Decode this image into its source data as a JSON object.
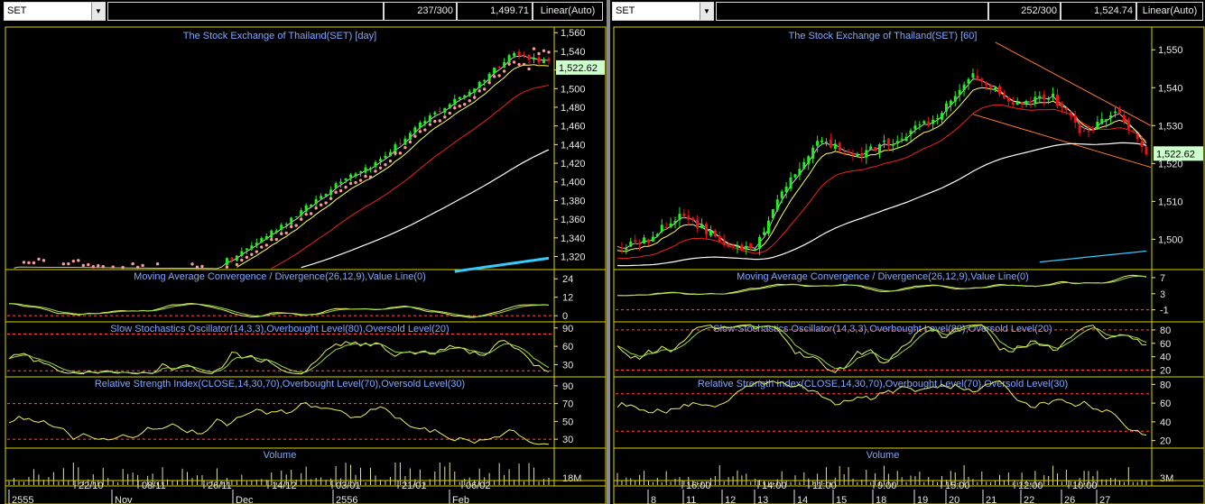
{
  "left": {
    "symbol": "SET",
    "count": "237/300",
    "last": "1,499.71",
    "scale": "Linear(Auto)",
    "price_title": "The Stock Exchange of Thailand(SET) [day]",
    "price_ticks": [
      "1,560",
      "1,540",
      "1,520",
      "1,500",
      "1,480",
      "1,460",
      "1,440",
      "1,420",
      "1,400",
      "1,380",
      "1,360",
      "1,340",
      "1,320"
    ],
    "price_tag": "1,522.62",
    "macd_title": "Moving Average Convergence / Divergence(26,12,9),Value Line(0)",
    "macd_ticks": [
      "24",
      "12",
      "0"
    ],
    "stoch_title": "Slow Stochastics Oscillator(14,3,3),Overbought Level(80),Oversold Level(20)",
    "stoch_ticks": [
      "90",
      "60",
      "30"
    ],
    "rsi_title": "Relative Strength Index(CLOSE,14,30,70),Overbought Level(70),Oversold Level(30)",
    "rsi_ticks": [
      "90",
      "70",
      "50",
      "30"
    ],
    "volume_title": "Volume",
    "volume_tick": "18M",
    "date_ticks": [
      "22/10",
      "08/11",
      "26/11",
      "14/12",
      "03/01",
      "21/01",
      "06/02"
    ],
    "period_labels": [
      "2555",
      "Nov",
      "Dec",
      "2556",
      "Feb"
    ]
  },
  "right": {
    "symbol": "SET",
    "count": "252/300",
    "last": "1,524.74",
    "scale": "Linear(Auto)",
    "price_title": "The Stock Exchange of Thailand(SET) [60]",
    "price_ticks": [
      "1,550",
      "1,540",
      "1,530",
      "1,520",
      "1,510",
      "1,500"
    ],
    "price_tag": "1,522.62",
    "macd_title": "Moving Average Convergence / Divergence(26,12,9),Value Line(0)",
    "macd_ticks": [
      "7",
      "3",
      "-1"
    ],
    "stoch_title": "Slow Stochastics Oscillator(14,3,3),Overbought Level(80),Oversold Level(20)",
    "stoch_ticks": [
      "80",
      "60",
      "40",
      "20"
    ],
    "rsi_title": "Relative Strength Index(CLOSE,14,30,70),Overbought Level(70),Oversold Level(30)",
    "rsi_ticks": [
      "80",
      "60",
      "40",
      "20"
    ],
    "volume_title": "Volume",
    "volume_tick": "3M",
    "time_ticks": [
      "16:00",
      "14:00",
      "11:00",
      "9:00",
      "15:00",
      "12:00",
      "10:00"
    ],
    "day_labels": [
      "8",
      "11",
      "12",
      "13",
      "14",
      "15",
      "18",
      "19",
      "20",
      "21",
      "22",
      "26",
      "27"
    ]
  },
  "colors": {
    "title": "#7fa6ff",
    "axis": "#e6e6e6",
    "border": "#d8d200",
    "up": "#22ee22",
    "down": "#ee1111",
    "ma_fast": "#ffffff",
    "ma_yellow": "#ffff66",
    "ma_red": "#ee2222",
    "ma_long": "#ffffff",
    "sar": "#ff9999",
    "level": "#ff5050",
    "indicator": "#e8f060",
    "indicator2": "#9ad84a",
    "cyan": "#33ccff",
    "tag_bg": "#ccffcc"
  }
}
